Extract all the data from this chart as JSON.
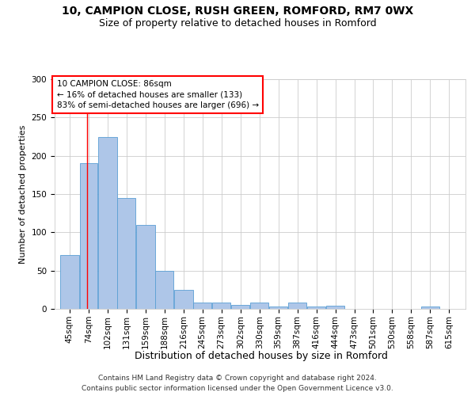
{
  "title1": "10, CAMPION CLOSE, RUSH GREEN, ROMFORD, RM7 0WX",
  "title2": "Size of property relative to detached houses in Romford",
  "xlabel": "Distribution of detached houses by size in Romford",
  "ylabel": "Number of detached properties",
  "bar_color": "#aec6e8",
  "bar_edge_color": "#5a9fd4",
  "categories": [
    "45sqm",
    "74sqm",
    "102sqm",
    "131sqm",
    "159sqm",
    "188sqm",
    "216sqm",
    "245sqm",
    "273sqm",
    "302sqm",
    "330sqm",
    "359sqm",
    "387sqm",
    "416sqm",
    "444sqm",
    "473sqm",
    "501sqm",
    "530sqm",
    "558sqm",
    "587sqm",
    "615sqm"
  ],
  "values": [
    70,
    190,
    225,
    145,
    110,
    50,
    25,
    8,
    8,
    5,
    8,
    3,
    8,
    3,
    4,
    0,
    0,
    0,
    0,
    3,
    0
  ],
  "bin_edges": [
    45,
    74,
    102,
    131,
    159,
    188,
    216,
    245,
    273,
    302,
    330,
    359,
    387,
    416,
    444,
    473,
    501,
    530,
    558,
    587,
    615,
    644
  ],
  "red_line_x": 86,
  "annotation_text": "10 CAMPION CLOSE: 86sqm\n← 16% of detached houses are smaller (133)\n83% of semi-detached houses are larger (696) →",
  "annotation_box_color": "white",
  "annotation_box_edge_color": "red",
  "grid_color": "#cccccc",
  "background_color": "white",
  "ylim": [
    0,
    300
  ],
  "yticks": [
    0,
    50,
    100,
    150,
    200,
    250,
    300
  ],
  "footer1": "Contains HM Land Registry data © Crown copyright and database right 2024.",
  "footer2": "Contains public sector information licensed under the Open Government Licence v3.0.",
  "title1_fontsize": 10,
  "title2_fontsize": 9,
  "xlabel_fontsize": 9,
  "ylabel_fontsize": 8,
  "tick_fontsize": 7.5,
  "annotation_fontsize": 7.5,
  "footer_fontsize": 6.5
}
